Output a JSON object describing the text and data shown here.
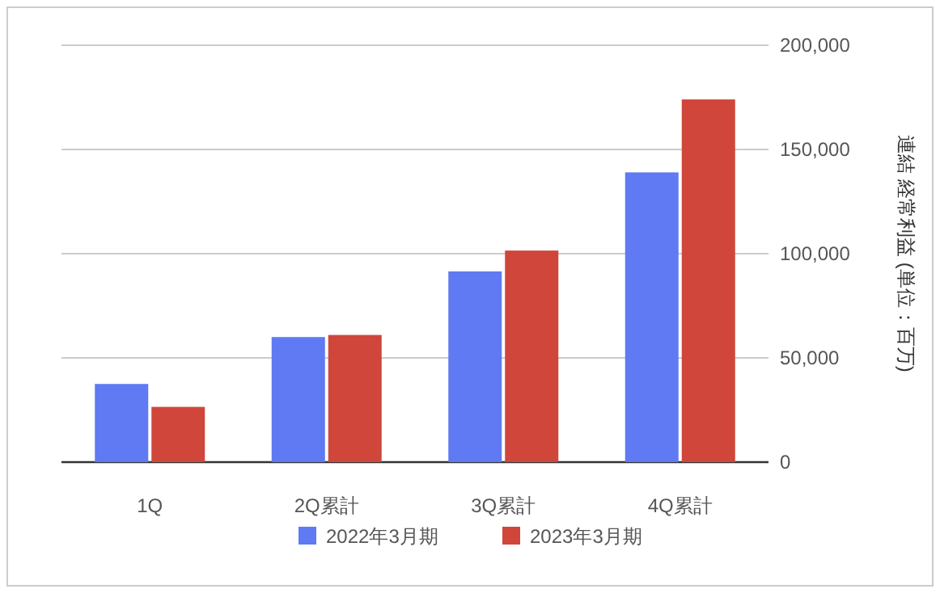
{
  "chart_data": {
    "type": "bar",
    "categories": [
      "1Q",
      "2Q累計",
      "3Q累計",
      "4Q累計"
    ],
    "series": [
      {
        "name": "2022年3月期",
        "color": "#5f7af2",
        "values": [
          37500,
          60000,
          91500,
          139000
        ]
      },
      {
        "name": "2023年3月期",
        "color": "#d0463b",
        "values": [
          26500,
          61000,
          101500,
          174000
        ]
      }
    ],
    "ylabel": "連結 経常利益 (単位：百万)",
    "ylim": [
      0,
      200000
    ],
    "yticks": [
      0,
      {
        "value": 50000,
        "label": "50,000"
      },
      {
        "value": 100000,
        "label": "100,000"
      },
      {
        "value": 150000,
        "label": "150,000"
      },
      {
        "value": 200000,
        "label": "200,000"
      }
    ],
    "grid": "y",
    "legend": "bottom"
  }
}
